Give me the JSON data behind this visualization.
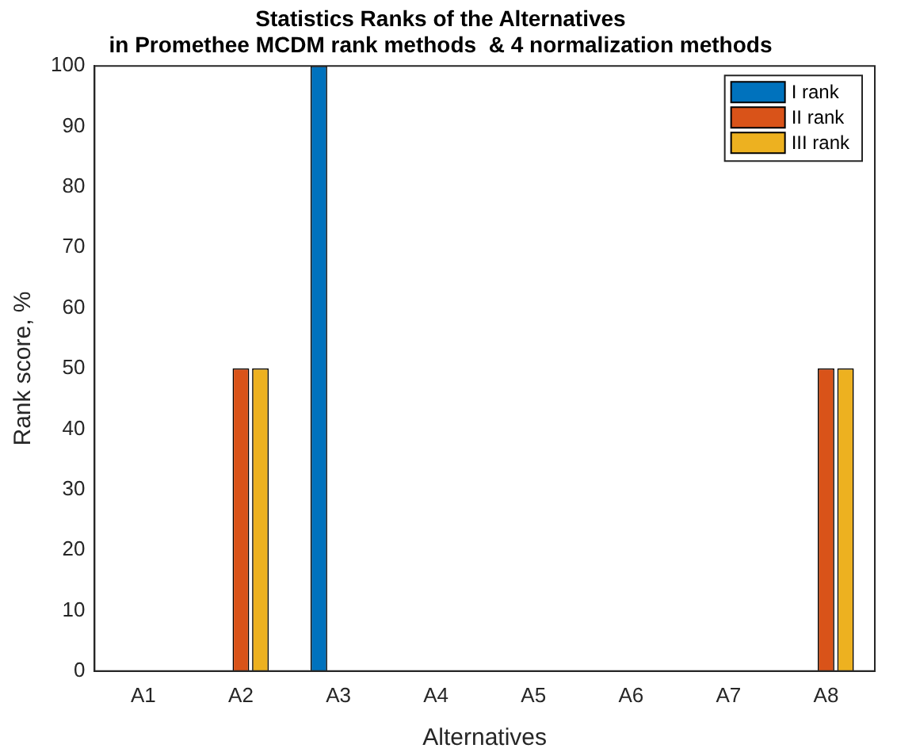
{
  "chart_data": {
    "type": "bar",
    "title": "Statistics Ranks of the Alternatives\nin Promethee MCDM rank methods  & 4 normalization methods",
    "xlabel": "Alternatives",
    "ylabel": "Rank score, %",
    "categories": [
      "A1",
      "A2",
      "A3",
      "A4",
      "A5",
      "A6",
      "A7",
      "A8"
    ],
    "series": [
      {
        "name": "I rank",
        "color": "#0072bd",
        "values": [
          0,
          0,
          100,
          0,
          0,
          0,
          0,
          0
        ]
      },
      {
        "name": "II rank",
        "color": "#d95319",
        "values": [
          0,
          50,
          0,
          0,
          0,
          0,
          0,
          50
        ]
      },
      {
        "name": "III rank",
        "color": "#edb120",
        "values": [
          0,
          50,
          0,
          0,
          0,
          0,
          0,
          50
        ]
      }
    ],
    "ylim": [
      0,
      100
    ],
    "yticks": [
      0,
      10,
      20,
      30,
      40,
      50,
      60,
      70,
      80,
      90,
      100
    ],
    "grid": false,
    "legend": "top right"
  }
}
